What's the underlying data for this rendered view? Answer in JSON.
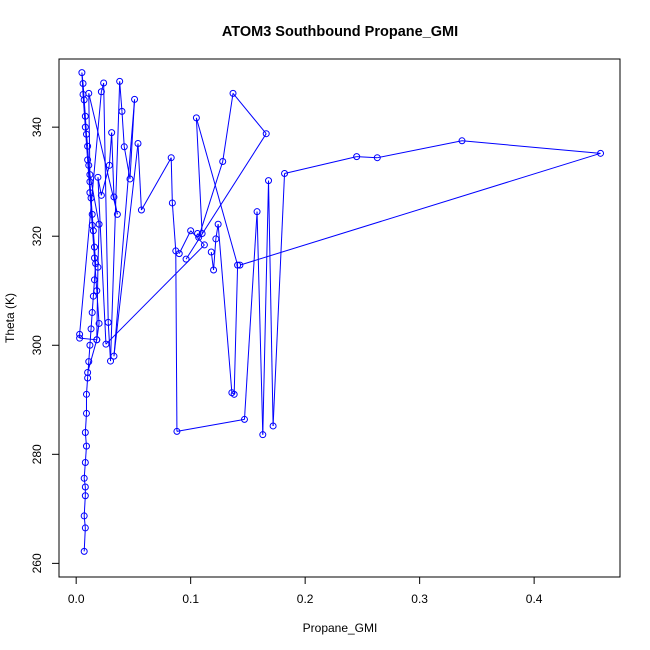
{
  "chart_data": {
    "type": "line",
    "title": "ATOM3 Southbound Propane_GMI",
    "xlabel": "Propane_GMI",
    "ylabel": "Theta (K)",
    "xlim": [
      -0.015,
      0.475
    ],
    "ylim": [
      257.5,
      352.5
    ],
    "x_ticks": [
      0.0,
      0.1,
      0.2,
      0.3,
      0.4
    ],
    "x_tick_labels": [
      "0.0",
      "0.1",
      "0.2",
      "0.3",
      "0.4"
    ],
    "y_ticks": [
      260,
      280,
      300,
      320,
      340
    ],
    "y_tick_labels": [
      "260",
      "280",
      "300",
      "320",
      "340"
    ],
    "grid": false,
    "series": [
      {
        "color": "#0000ff",
        "marker": "open-circle",
        "points": [
          [
            0.007,
            262.2
          ],
          [
            0.008,
            266.5
          ],
          [
            0.007,
            268.7
          ],
          [
            0.008,
            272.4
          ],
          [
            0.008,
            274.0
          ],
          [
            0.007,
            275.6
          ],
          [
            0.008,
            278.5
          ],
          [
            0.009,
            281.5
          ],
          [
            0.008,
            284.0
          ],
          [
            0.009,
            287.5
          ],
          [
            0.009,
            291.0
          ],
          [
            0.01,
            294.0
          ],
          [
            0.011,
            297.0
          ],
          [
            0.012,
            300.0
          ],
          [
            0.013,
            303.0
          ],
          [
            0.014,
            306.0
          ],
          [
            0.015,
            309.0
          ],
          [
            0.016,
            312.0
          ],
          [
            0.017,
            315.0
          ],
          [
            0.016,
            318.0
          ],
          [
            0.015,
            321.0
          ],
          [
            0.014,
            324.0
          ],
          [
            0.013,
            327.0
          ],
          [
            0.012,
            330.0
          ],
          [
            0.011,
            333.0
          ],
          [
            0.01,
            336.5
          ],
          [
            0.009,
            338.7
          ],
          [
            0.008,
            342.0
          ],
          [
            0.007,
            345.0
          ],
          [
            0.006,
            348.0
          ],
          [
            0.005,
            350.0
          ],
          [
            0.006,
            346.0
          ],
          [
            0.008,
            340.0
          ],
          [
            0.01,
            334.0
          ],
          [
            0.012,
            328.0
          ],
          [
            0.014,
            322.0
          ],
          [
            0.016,
            316.0
          ],
          [
            0.018,
            310.0
          ],
          [
            0.02,
            304.0
          ],
          [
            0.018,
            301.0
          ],
          [
            0.003,
            301.3
          ],
          [
            0.003,
            302.0
          ],
          [
            0.022,
            346.5
          ],
          [
            0.024,
            348.1
          ],
          [
            0.028,
            304.2
          ],
          [
            0.03,
            297.1
          ],
          [
            0.038,
            348.4
          ],
          [
            0.04,
            342.9
          ],
          [
            0.042,
            336.4
          ],
          [
            0.047,
            330.5
          ],
          [
            0.051,
            345.1
          ],
          [
            0.033,
            298.0
          ],
          [
            0.054,
            337.0
          ],
          [
            0.057,
            324.8
          ],
          [
            0.083,
            334.4
          ],
          [
            0.084,
            326.1
          ],
          [
            0.087,
            317.3
          ],
          [
            0.088,
            284.2
          ],
          [
            0.105,
            341.7
          ],
          [
            0.11,
            320.5
          ],
          [
            0.106,
            320.5
          ],
          [
            0.107,
            319.8
          ],
          [
            0.128,
            333.7
          ],
          [
            0.137,
            346.2
          ],
          [
            0.166,
            338.8
          ],
          [
            0.096,
            315.8
          ],
          [
            0.118,
            317.1
          ],
          [
            0.12,
            313.8
          ],
          [
            0.122,
            319.5
          ],
          [
            0.124,
            322.2
          ],
          [
            0.136,
            291.3
          ],
          [
            0.138,
            291.0
          ],
          [
            0.141,
            314.7
          ],
          [
            0.147,
            286.4
          ],
          [
            0.158,
            324.5
          ],
          [
            0.163,
            283.6
          ],
          [
            0.168,
            330.2
          ],
          [
            0.172,
            285.2
          ],
          [
            0.182,
            331.5
          ],
          [
            0.245,
            334.6
          ],
          [
            0.263,
            334.4
          ],
          [
            0.337,
            337.5
          ],
          [
            0.458,
            335.2
          ],
          [
            0.143,
            314.7
          ],
          [
            0.09,
            316.8
          ],
          [
            0.1,
            321.0
          ],
          [
            0.112,
            318.4
          ],
          [
            0.026,
            300.2
          ],
          [
            0.019,
            330.8
          ],
          [
            0.022,
            327.5
          ],
          [
            0.029,
            333.0
          ],
          [
            0.031,
            339.0
          ],
          [
            0.033,
            327.2
          ],
          [
            0.036,
            324.0
          ],
          [
            0.011,
            346.2
          ],
          [
            0.012,
            331.3
          ],
          [
            0.02,
            322.2
          ],
          [
            0.019,
            314.3
          ],
          [
            0.018,
            301.0
          ],
          [
            0.01,
            295.0
          ]
        ],
        "segments": [
          [
            0,
            1
          ],
          [
            1,
            2
          ],
          [
            2,
            3
          ],
          [
            3,
            4
          ],
          [
            4,
            5
          ],
          [
            5,
            6
          ],
          [
            6,
            7
          ],
          [
            7,
            8
          ],
          [
            8,
            9
          ],
          [
            9,
            10
          ],
          [
            10,
            11
          ],
          [
            11,
            12
          ],
          [
            12,
            13
          ],
          [
            13,
            14
          ],
          [
            14,
            15
          ],
          [
            15,
            16
          ],
          [
            16,
            17
          ],
          [
            17,
            18
          ],
          [
            18,
            19
          ],
          [
            19,
            20
          ],
          [
            20,
            21
          ],
          [
            21,
            22
          ],
          [
            22,
            23
          ],
          [
            23,
            24
          ],
          [
            24,
            25
          ],
          [
            25,
            26
          ],
          [
            26,
            27
          ],
          [
            27,
            28
          ],
          [
            28,
            29
          ],
          [
            29,
            30
          ],
          [
            30,
            31
          ],
          [
            31,
            32
          ],
          [
            32,
            33
          ],
          [
            33,
            34
          ],
          [
            34,
            35
          ],
          [
            35,
            36
          ],
          [
            36,
            37
          ],
          [
            37,
            38
          ],
          [
            38,
            39
          ],
          [
            40,
            41
          ],
          [
            41,
            42
          ],
          [
            42,
            43
          ],
          [
            43,
            44
          ],
          [
            44,
            45
          ],
          [
            45,
            46
          ],
          [
            46,
            47
          ],
          [
            47,
            48
          ],
          [
            48,
            49
          ],
          [
            49,
            50
          ],
          [
            50,
            51
          ],
          [
            51,
            52
          ],
          [
            52,
            53
          ],
          [
            53,
            54
          ],
          [
            54,
            55
          ],
          [
            55,
            56
          ],
          [
            56,
            57
          ],
          [
            58,
            59
          ],
          [
            60,
            61
          ],
          [
            61,
            62
          ],
          [
            62,
            63
          ],
          [
            63,
            64
          ],
          [
            64,
            65
          ],
          [
            66,
            67
          ],
          [
            67,
            68
          ],
          [
            68,
            69
          ],
          [
            69,
            70
          ],
          [
            70,
            71
          ],
          [
            71,
            72
          ],
          [
            73,
            74
          ],
          [
            74,
            75
          ],
          [
            75,
            76
          ],
          [
            76,
            77
          ],
          [
            77,
            78
          ],
          [
            78,
            79
          ],
          [
            79,
            80
          ],
          [
            80,
            81
          ],
          [
            81,
            82
          ],
          [
            82,
            83
          ],
          [
            84,
            85
          ],
          [
            85,
            86
          ],
          [
            86,
            87
          ],
          [
            87,
            88
          ],
          [
            88,
            89
          ],
          [
            89,
            90
          ],
          [
            90,
            91
          ],
          [
            91,
            92
          ],
          [
            92,
            93
          ],
          [
            93,
            94
          ],
          [
            94,
            95
          ],
          [
            95,
            96
          ],
          [
            96,
            97
          ],
          [
            97,
            98
          ],
          [
            98,
            99
          ],
          [
            57,
            73
          ],
          [
            72,
            58
          ],
          [
            39,
            40
          ]
        ]
      }
    ]
  }
}
